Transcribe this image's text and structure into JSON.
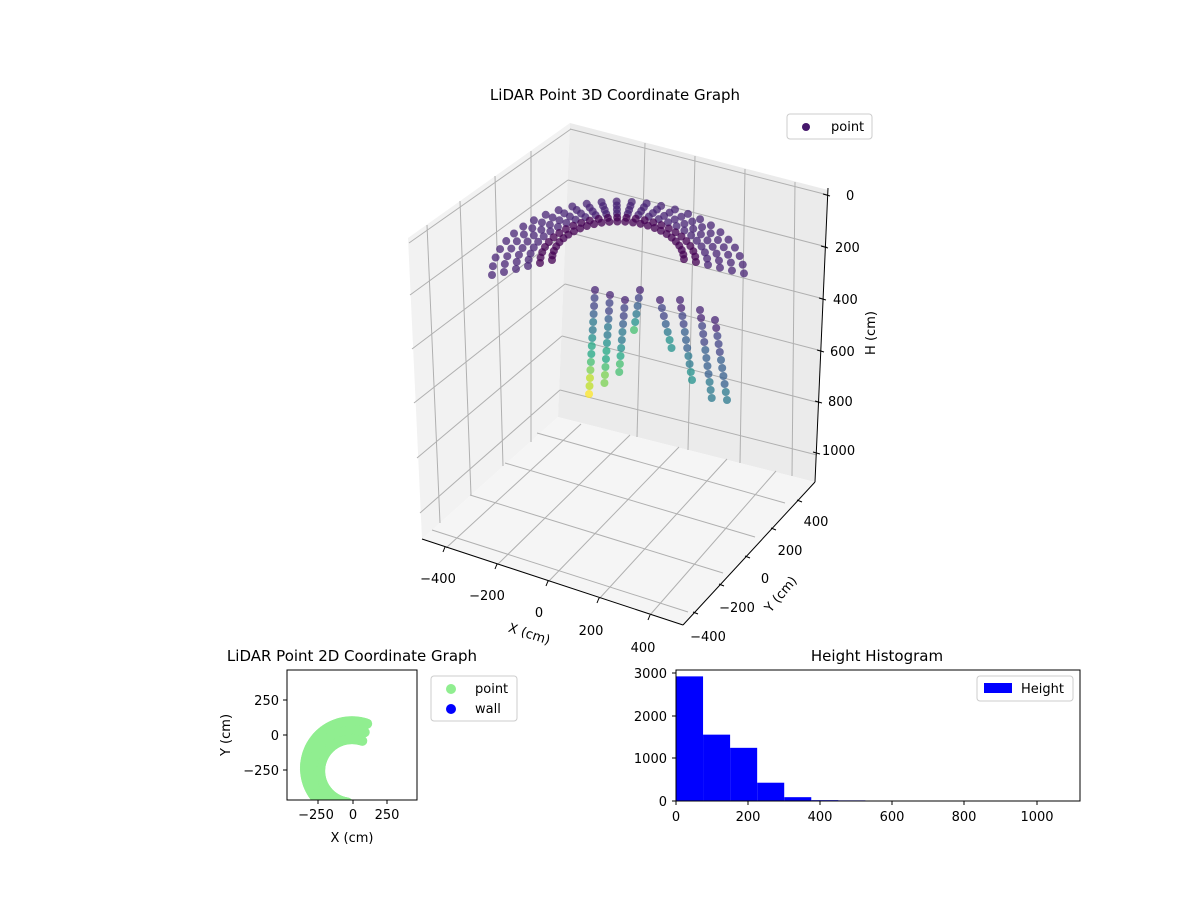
{
  "chart_data": [
    {
      "type": "scatter",
      "projection": "3d",
      "title": "LiDAR Point 3D Coordinate Graph",
      "xlabel": "X (cm)",
      "ylabel": "Y (cm)",
      "zlabel": "H (cm)",
      "x_ticks": [
        "−400",
        "−200",
        "0",
        "200",
        "400"
      ],
      "y_ticks": [
        "400",
        "200",
        "0",
        "−200",
        "−400"
      ],
      "z_ticks": [
        "0",
        "200",
        "400",
        "600",
        "800",
        "1000"
      ],
      "xlim": [
        -500,
        500
      ],
      "ylim": [
        -500,
        500
      ],
      "zlim": [
        0,
        1100
      ],
      "z_axis_inverted": true,
      "colormap": "viridis",
      "legend": {
        "entries": [
          "point"
        ],
        "position": "top-right",
        "marker_color": "#46186c"
      },
      "series": [
        {
          "name": "point"
        }
      ]
    },
    {
      "type": "scatter",
      "title": "LiDAR Point 2D Coordinate Graph",
      "xlabel": "X (cm)",
      "ylabel": "Y (cm)",
      "x_ticks": [
        "−250",
        "0",
        "250"
      ],
      "y_ticks": [
        "250",
        "0",
        "−250"
      ],
      "xlim": [
        -470,
        470
      ],
      "ylim": [
        -470,
        470
      ],
      "legend": {
        "entries": [
          "point",
          "wall"
        ],
        "position": "outside-right"
      },
      "series": [
        {
          "name": "point",
          "color": "#90ee90"
        },
        {
          "name": "wall",
          "color": "#0000ff"
        }
      ]
    },
    {
      "type": "bar",
      "subtype": "histogram",
      "title": "Height Histogram",
      "xlabel": "",
      "ylabel": "",
      "x_ticks": [
        "0",
        "200",
        "400",
        "600",
        "800",
        "1000"
      ],
      "y_ticks": [
        "0",
        "1000",
        "2000",
        "3000"
      ],
      "xlim": [
        0,
        1120
      ],
      "ylim": [
        0,
        3080
      ],
      "legend": {
        "entries": [
          "Height"
        ],
        "position": "top-right"
      },
      "bin_edges": [
        0,
        75,
        150,
        225,
        300,
        375,
        450,
        525,
        600,
        675,
        750,
        825,
        900,
        975,
        1050
      ],
      "series": [
        {
          "name": "Height",
          "color": "#0000ff",
          "values": [
            2930,
            1560,
            1250,
            430,
            90,
            20,
            15,
            5,
            4,
            3,
            2,
            2,
            2,
            1
          ]
        }
      ]
    }
  ]
}
